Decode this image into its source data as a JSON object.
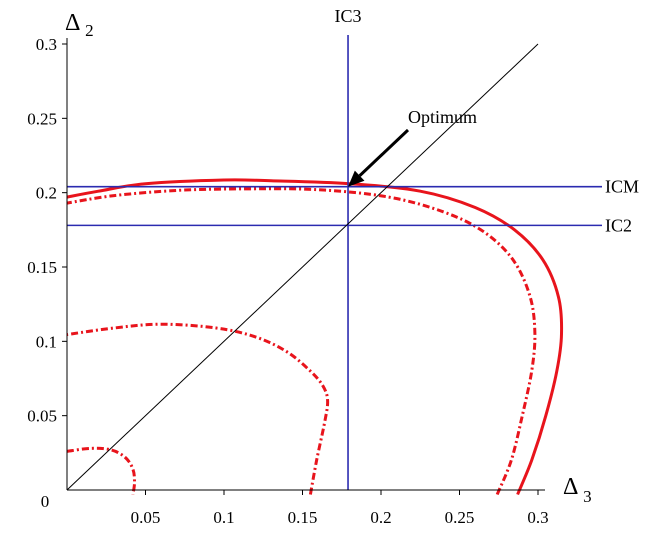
{
  "chart_data": {
    "type": "line",
    "xlabel": {
      "symbol": "Δ",
      "subscript": "3"
    },
    "ylabel": {
      "symbol": "Δ",
      "subscript": "2"
    },
    "xlim": [
      0,
      0.3
    ],
    "ylim": [
      0,
      0.3
    ],
    "x_ticks": [
      {
        "value": 0,
        "label": "0"
      },
      {
        "value": 0.05,
        "label": "0.05"
      },
      {
        "value": 0.1,
        "label": "0.1"
      },
      {
        "value": 0.15,
        "label": "0.15"
      },
      {
        "value": 0.2,
        "label": "0.2"
      },
      {
        "value": 0.25,
        "label": "0.25"
      },
      {
        "value": 0.3,
        "label": "0.3"
      }
    ],
    "y_ticks": [
      {
        "value": 0.05,
        "label": "0.05"
      },
      {
        "value": 0.1,
        "label": "0.1"
      },
      {
        "value": 0.15,
        "label": "0.15"
      },
      {
        "value": 0.2,
        "label": "0.2"
      },
      {
        "value": 0.25,
        "label": "0.25"
      },
      {
        "value": 0.3,
        "label": "0.3"
      }
    ],
    "grid": false,
    "lines": [
      {
        "label": "IC3",
        "orientation": "vertical",
        "value": 0.179,
        "color": "#2b2bb0"
      },
      {
        "label": "ICM",
        "orientation": "horizontal",
        "value": 0.204,
        "color": "#2b2bb0"
      },
      {
        "label": "IC2",
        "orientation": "horizontal",
        "value": 0.178,
        "color": "#2b2bb0"
      },
      {
        "label": "",
        "orientation": "diagonal",
        "from": [
          0,
          0
        ],
        "to": [
          0.3,
          0.3
        ],
        "color": "#000000"
      }
    ],
    "curves": [
      {
        "style": "solid",
        "color": "#e8141c",
        "points": [
          [
            0.287,
            -0.003
          ],
          [
            0.296,
            0.02
          ],
          [
            0.305,
            0.05
          ],
          [
            0.312,
            0.08
          ],
          [
            0.315,
            0.105
          ],
          [
            0.313,
            0.13
          ],
          [
            0.303,
            0.155
          ],
          [
            0.285,
            0.175
          ],
          [
            0.26,
            0.19
          ],
          [
            0.225,
            0.201
          ],
          [
            0.18,
            0.206
          ],
          [
            0.13,
            0.208
          ],
          [
            0.1,
            0.2085
          ],
          [
            0.05,
            0.206
          ],
          [
            0.02,
            0.201
          ],
          [
            0.0,
            0.197
          ]
        ]
      },
      {
        "style": "dashdot",
        "color": "#e8141c",
        "points": [
          [
            0.274,
            -0.003
          ],
          [
            0.283,
            0.02
          ],
          [
            0.29,
            0.05
          ],
          [
            0.296,
            0.08
          ],
          [
            0.298,
            0.105
          ],
          [
            0.295,
            0.13
          ],
          [
            0.284,
            0.155
          ],
          [
            0.265,
            0.174
          ],
          [
            0.24,
            0.187
          ],
          [
            0.205,
            0.197
          ],
          [
            0.16,
            0.202
          ],
          [
            0.11,
            0.2025
          ],
          [
            0.07,
            0.2015
          ],
          [
            0.03,
            0.198
          ],
          [
            0.0,
            0.193
          ]
        ]
      },
      {
        "style": "dashdot",
        "color": "#e8141c",
        "points": [
          [
            0.155,
            -0.003
          ],
          [
            0.159,
            0.02
          ],
          [
            0.164,
            0.045
          ],
          [
            0.166,
            0.06
          ],
          [
            0.163,
            0.07
          ],
          [
            0.155,
            0.08
          ],
          [
            0.14,
            0.093
          ],
          [
            0.12,
            0.103
          ],
          [
            0.095,
            0.109
          ],
          [
            0.06,
            0.1115
          ],
          [
            0.03,
            0.109
          ],
          [
            0.0,
            0.1045
          ]
        ]
      },
      {
        "style": "dashdot",
        "color": "#e8141c",
        "points": [
          [
            0.0,
            0.026
          ],
          [
            0.015,
            0.028
          ],
          [
            0.028,
            0.027
          ],
          [
            0.037,
            0.022
          ],
          [
            0.042,
            0.014
          ],
          [
            0.043,
            0.005
          ],
          [
            0.042,
            -0.003
          ]
        ]
      }
    ],
    "annotations": [
      {
        "text": "Optimum",
        "arrow_to": [
          0.179,
          0.204
        ]
      }
    ]
  }
}
